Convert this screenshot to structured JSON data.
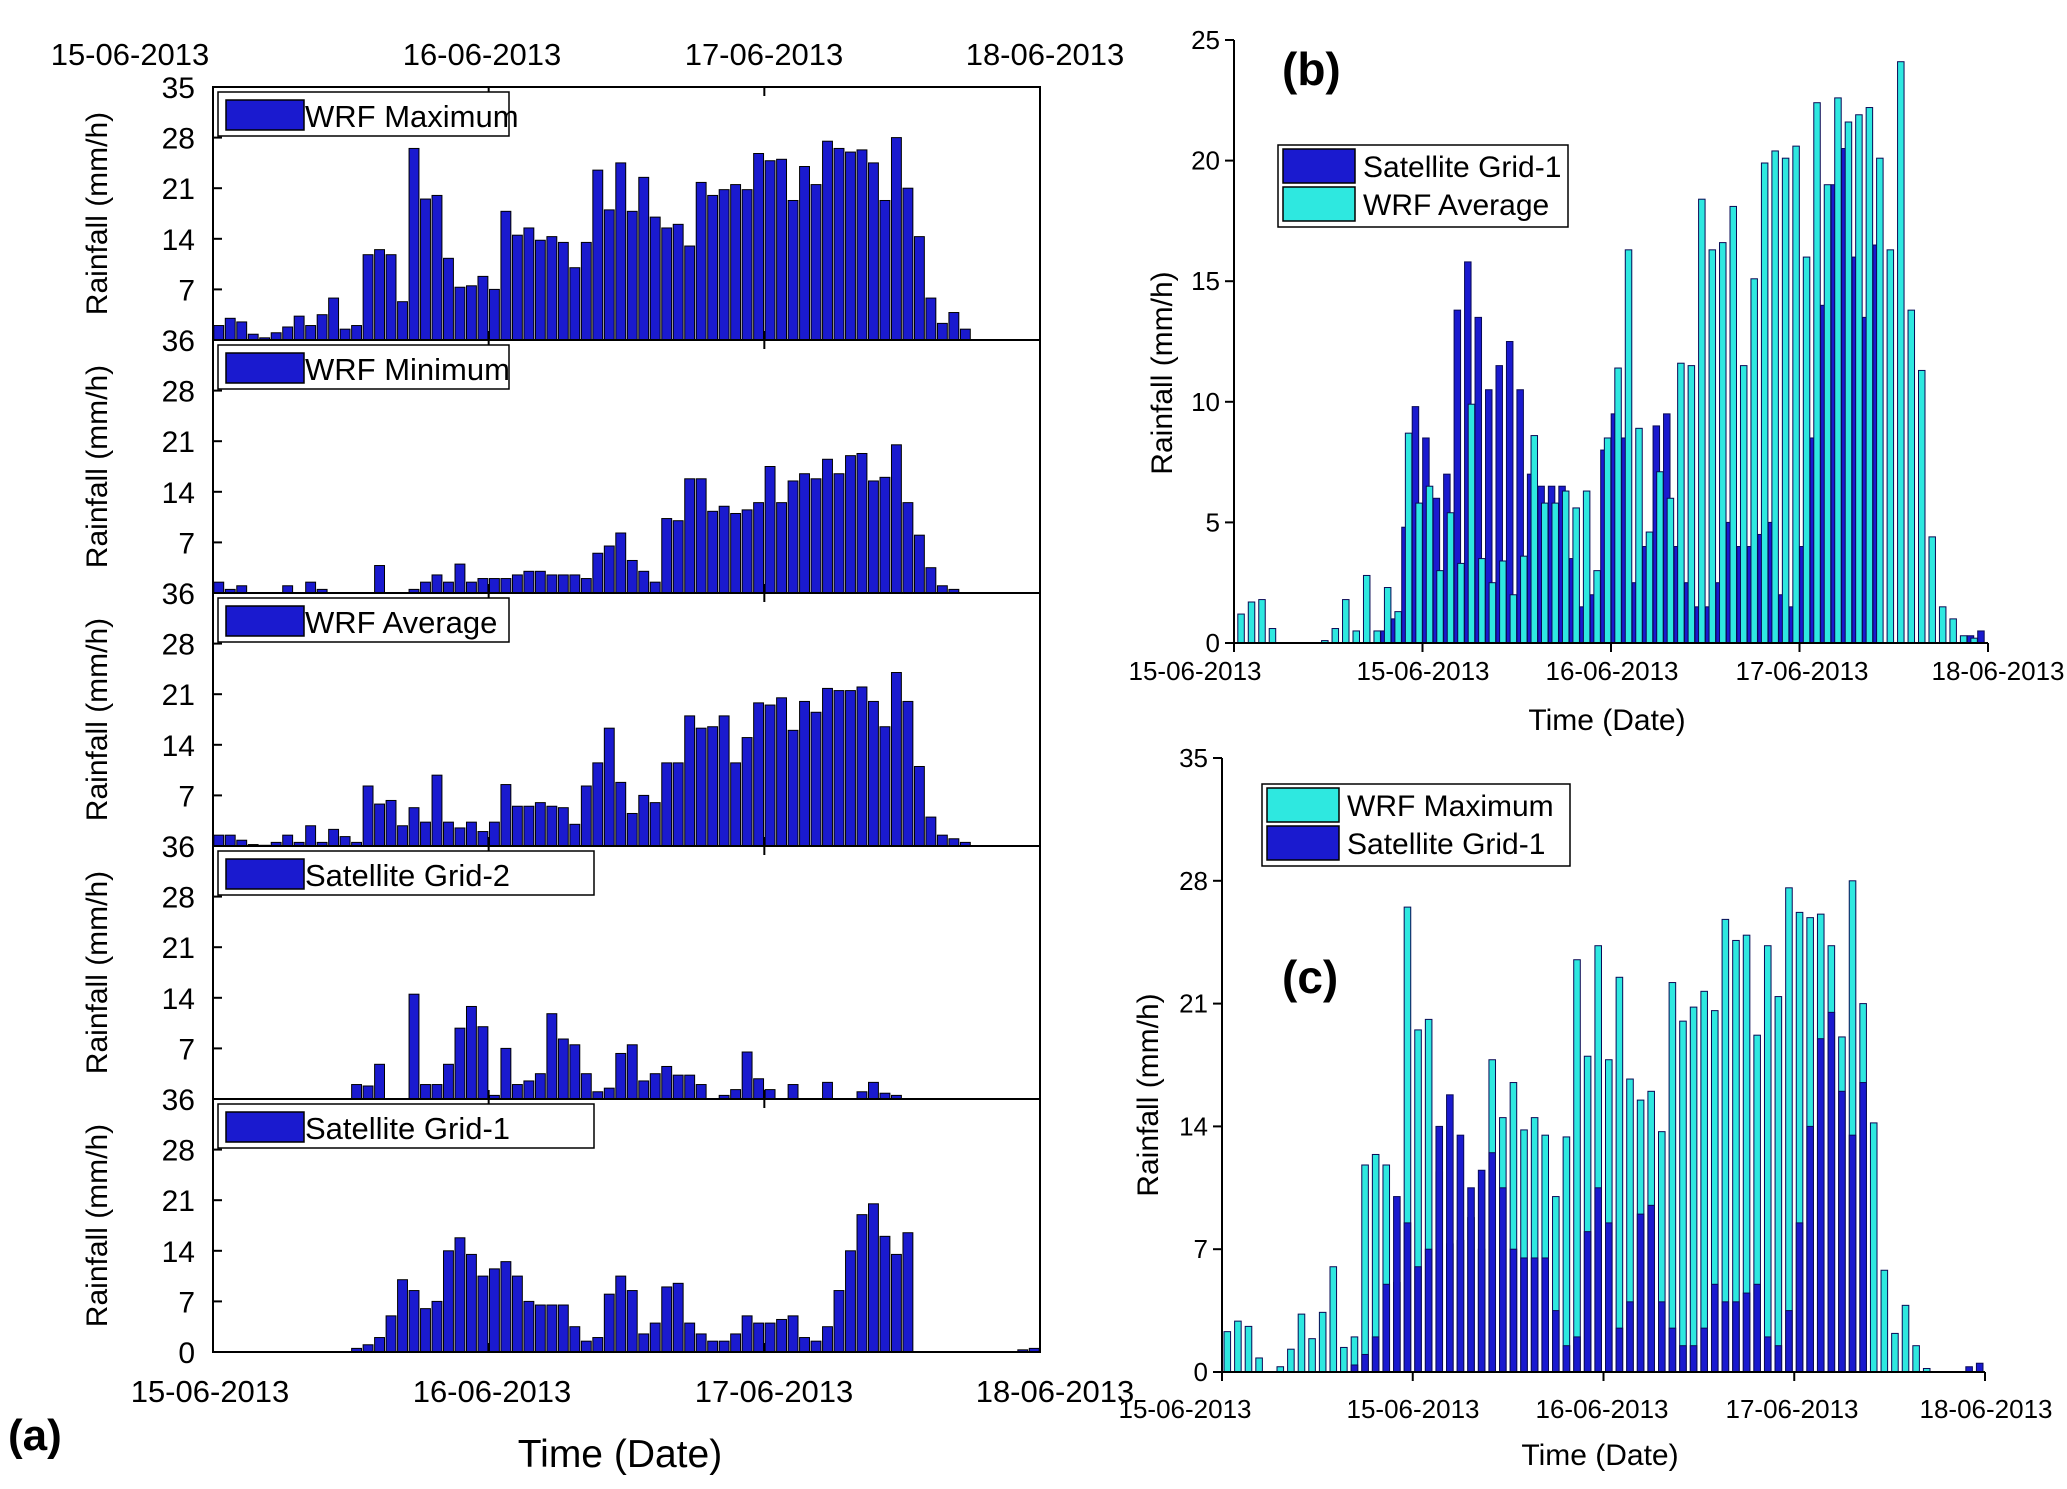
{
  "colors": {
    "dark_blue": "#1a1acf",
    "cyan": "#2ee8e0",
    "axis": "#000000"
  },
  "chart_data": [
    {
      "id": "a",
      "panel_label": "(a)",
      "type": "bar",
      "xlabel": "Time (Date)",
      "ylabel": "Rainfall (mm/h)",
      "xlim": [
        0,
        72
      ],
      "x_ticks": [
        0,
        24,
        48,
        72
      ],
      "x_tick_labels": [
        "15-06-2013",
        "16-06-2013",
        "17-06-2013",
        "18-06-2013"
      ],
      "top_tick_labels": [
        "15-06-2013",
        "16-06-2013",
        "17-06-2013",
        "18-06-2013"
      ],
      "ylim": [
        0,
        35
      ],
      "y_ticks": [
        0,
        7,
        14,
        21,
        28,
        35
      ],
      "y_tick_labels": [
        "0",
        "7",
        "14",
        "21",
        "28",
        "35"
      ],
      "y_tick_labels_stacked": [
        "7",
        "14",
        "21",
        "28",
        "36"
      ],
      "subplots": [
        {
          "legend": "WRF Maximum",
          "values": [
            2,
            3,
            2.5,
            0.8,
            0.3,
            1,
            1.8,
            3.3,
            2,
            3.5,
            5.8,
            1.5,
            2,
            11.8,
            12.5,
            11.8,
            5.3,
            26.5,
            19.5,
            20,
            11.3,
            7.3,
            7.5,
            8.8,
            7,
            17.8,
            14.5,
            15.5,
            13.8,
            14.3,
            13.5,
            10,
            13.5,
            23.5,
            18,
            24.5,
            17.8,
            22.5,
            17,
            15.5,
            16,
            13,
            21.8,
            20,
            20.8,
            21.5,
            20.8,
            25.8,
            24.8,
            25,
            19.3,
            24,
            21.5,
            27.5,
            26.5,
            26,
            26.3,
            24.5,
            19.3,
            28,
            21,
            14.3,
            5.8,
            2.3,
            3.8,
            1.5,
            0,
            0,
            0,
            0,
            0,
            0
          ]
        },
        {
          "legend": "WRF Minimum",
          "values": [
            1.5,
            0.5,
            1,
            0,
            0,
            0,
            1,
            0,
            1.5,
            0.5,
            0,
            0,
            0,
            0,
            3.8,
            0,
            0,
            0.5,
            1.5,
            2.5,
            1.5,
            4,
            1.5,
            2,
            2,
            2,
            2.5,
            3,
            3,
            2.5,
            2.5,
            2.5,
            2,
            5.5,
            6.5,
            8.3,
            4.5,
            3,
            1.5,
            10.3,
            10,
            15.8,
            15.8,
            11.3,
            12,
            11,
            11.5,
            12.5,
            17.5,
            12.5,
            15.5,
            16.5,
            15.8,
            18.5,
            16.5,
            19,
            19.3,
            15.5,
            16,
            20.5,
            12.5,
            8,
            3.5,
            1,
            0.5,
            0,
            0,
            0,
            0,
            0,
            0,
            0
          ]
        },
        {
          "legend": "WRF Average",
          "values": [
            1.5,
            1.5,
            0.8,
            0.2,
            0.1,
            0.5,
            1.5,
            0.5,
            2.8,
            0.5,
            2.3,
            1.3,
            0.5,
            8.3,
            5.8,
            6.3,
            2.8,
            5.3,
            3.3,
            9.8,
            3.3,
            2.5,
            3.3,
            2,
            3.3,
            8.5,
            5.5,
            5.5,
            6,
            5.5,
            5.3,
            3,
            8.3,
            11.5,
            16.3,
            8.8,
            4.5,
            7,
            6,
            11.5,
            11.5,
            18,
            16.3,
            16.5,
            18,
            11.5,
            15,
            19.8,
            19.5,
            20.5,
            16,
            20,
            18.5,
            21.8,
            21.5,
            21.5,
            22,
            20,
            16.5,
            24,
            20,
            11,
            4,
            1.5,
            1,
            0.5,
            0,
            0,
            0,
            0,
            0,
            0
          ]
        },
        {
          "legend": "Satellite Grid-2",
          "values": [
            0,
            0,
            0,
            0,
            0,
            0,
            0,
            0,
            0,
            0,
            0,
            0,
            2,
            1.8,
            4.8,
            0,
            0,
            14.5,
            2,
            2,
            4.8,
            9.8,
            12.8,
            10,
            0.5,
            7,
            2,
            2.5,
            3.5,
            11.8,
            8.3,
            7.5,
            3.5,
            1,
            1.5,
            6.3,
            7.5,
            2.5,
            3.5,
            4.5,
            3.3,
            3.3,
            2,
            0,
            0.5,
            1.3,
            6.5,
            2.8,
            1.3,
            0,
            2,
            0,
            0,
            2.3,
            0,
            0,
            1,
            2.3,
            0.8,
            0.5,
            0,
            0,
            0,
            0,
            0,
            0,
            0,
            0,
            0,
            0,
            0,
            0
          ]
        },
        {
          "legend": "Satellite Grid-1",
          "values": [
            0,
            0,
            0,
            0,
            0,
            0,
            0,
            0,
            0,
            0,
            0,
            0,
            0.5,
            1,
            2,
            5,
            10,
            8.5,
            6,
            7,
            14,
            15.8,
            13.5,
            10.5,
            11.5,
            12.5,
            10.5,
            7,
            6.5,
            6.5,
            6.5,
            3.5,
            1.5,
            2,
            8,
            10.5,
            8.5,
            2.5,
            4,
            9,
            9.5,
            4,
            2.5,
            1.5,
            1.5,
            2.5,
            5,
            4,
            4,
            4.5,
            5,
            2,
            1.5,
            3.5,
            8.5,
            14,
            19,
            20.5,
            16,
            13.5,
            16.5,
            0,
            0,
            0,
            0,
            0,
            0,
            0,
            0,
            0,
            0.3,
            0.5
          ]
        }
      ]
    },
    {
      "id": "b",
      "panel_label": "(b)",
      "type": "bar",
      "xlabel": "Time (Date)",
      "ylabel": "Rainfall (mm/h)",
      "xlim": [
        0,
        72
      ],
      "x_ticks": [
        0,
        18,
        36,
        54,
        72
      ],
      "x_tick_labels": [
        "15-06-2013",
        "15-06-2013",
        "16-06-2013",
        "17-06-2013",
        "18-06-2013"
      ],
      "ylim": [
        0,
        25
      ],
      "y_ticks": [
        0,
        5,
        10,
        15,
        20,
        25
      ],
      "y_tick_labels": [
        "0",
        "5",
        "10",
        "15",
        "20",
        "25"
      ],
      "legend_position": "top-left",
      "series": [
        {
          "name": "Satellite Grid-1",
          "color": "dark_blue",
          "values": [
            0,
            0,
            0,
            0,
            0,
            0,
            0,
            0,
            0,
            0,
            0,
            0,
            0,
            0,
            0.5,
            1,
            4.8,
            9.8,
            8.5,
            6,
            7,
            13.8,
            15.8,
            13.5,
            10.5,
            11.5,
            12.5,
            10.5,
            7,
            6.5,
            6.5,
            6.5,
            3.5,
            1.5,
            2,
            8,
            9.5,
            8.5,
            2.5,
            4,
            9,
            9.5,
            4,
            2.5,
            1.5,
            1.5,
            2.5,
            5,
            4,
            4,
            4.5,
            5,
            2,
            1.5,
            4,
            8.5,
            14,
            19,
            20.5,
            16,
            13.5,
            16.5,
            0,
            0,
            0,
            0,
            0,
            0,
            0,
            0,
            0.3,
            0.5
          ]
        },
        {
          "name": "WRF Average",
          "color": "cyan",
          "values": [
            1.2,
            1.7,
            1.8,
            0.6,
            0,
            0,
            0,
            0,
            0.1,
            0.6,
            1.8,
            0.5,
            2.8,
            0.5,
            2.3,
            1.3,
            8.7,
            5.8,
            6.5,
            3,
            5.4,
            3.3,
            9.9,
            3.5,
            2.5,
            3.4,
            2,
            3.6,
            8.6,
            5.8,
            5.8,
            6.3,
            5.6,
            6.3,
            3,
            8.5,
            11.4,
            16.3,
            8.9,
            4.6,
            7.1,
            6,
            11.6,
            11.5,
            18.4,
            16.3,
            16.6,
            18.1,
            11.5,
            15.1,
            19.9,
            20.4,
            20.1,
            20.6,
            16,
            22.4,
            19,
            22.6,
            21.6,
            21.9,
            22.2,
            20.1,
            16.3,
            24.1,
            13.8,
            11.3,
            4.4,
            1.5,
            1,
            0.3,
            0.2,
            0
          ]
        }
      ]
    },
    {
      "id": "c",
      "panel_label": "(c)",
      "type": "bar",
      "xlabel": "Time (Date)",
      "ylabel": "Rainfall (mm/h)",
      "xlim": [
        0,
        72
      ],
      "x_ticks": [
        0,
        18,
        36,
        54,
        72
      ],
      "x_tick_labels": [
        "15-06-2013",
        "15-06-2013",
        "16-06-2013",
        "17-06-2013",
        "18-06-2013"
      ],
      "ylim": [
        0,
        35
      ],
      "y_ticks": [
        0,
        7,
        14,
        21,
        28,
        35
      ],
      "y_tick_labels": [
        "0",
        "7",
        "14",
        "21",
        "28",
        "35"
      ],
      "legend_position": "top-left",
      "series": [
        {
          "name": "WRF Maximum",
          "color": "cyan",
          "values": [
            2.3,
            2.9,
            2.6,
            0.8,
            0,
            0.3,
            1.3,
            3.3,
            1.9,
            3.4,
            6,
            1.4,
            2,
            11.8,
            12.4,
            11.8,
            5.1,
            26.5,
            19.5,
            20.1,
            11.4,
            7.3,
            7.5,
            8.8,
            7,
            17.8,
            14.5,
            16.5,
            13.8,
            14.5,
            13.5,
            10,
            13.4,
            23.5,
            18,
            24.3,
            17.8,
            22.5,
            16.7,
            15.5,
            16,
            13.7,
            22.2,
            20,
            20.8,
            21.7,
            20.6,
            25.8,
            24.6,
            24.9,
            19.2,
            24.3,
            21.4,
            27.6,
            26.2,
            25.9,
            26.1,
            24.3,
            19.1,
            28,
            21,
            14.2,
            5.8,
            2.2,
            3.8,
            1.5,
            0.2,
            0,
            0,
            0,
            0,
            0
          ]
        },
        {
          "name": "Satellite Grid-1",
          "color": "dark_blue",
          "values": [
            0,
            0,
            0,
            0,
            0,
            0,
            0,
            0,
            0,
            0,
            0,
            0,
            0.4,
            1,
            2,
            5,
            10,
            8.5,
            6,
            7,
            14,
            15.8,
            13.5,
            10.5,
            11.5,
            12.5,
            10.5,
            7,
            6.5,
            6.5,
            6.5,
            3.5,
            1.5,
            2,
            8,
            10.5,
            8.5,
            2.5,
            4,
            9,
            9.5,
            4,
            2.5,
            1.5,
            1.5,
            2.5,
            5,
            4,
            4,
            4.5,
            5,
            2,
            1.5,
            3.5,
            8.5,
            14,
            19,
            20.5,
            16,
            13.5,
            16.5,
            0,
            0,
            0,
            0,
            0,
            0,
            0,
            0,
            0,
            0.3,
            0.5
          ]
        }
      ]
    }
  ]
}
